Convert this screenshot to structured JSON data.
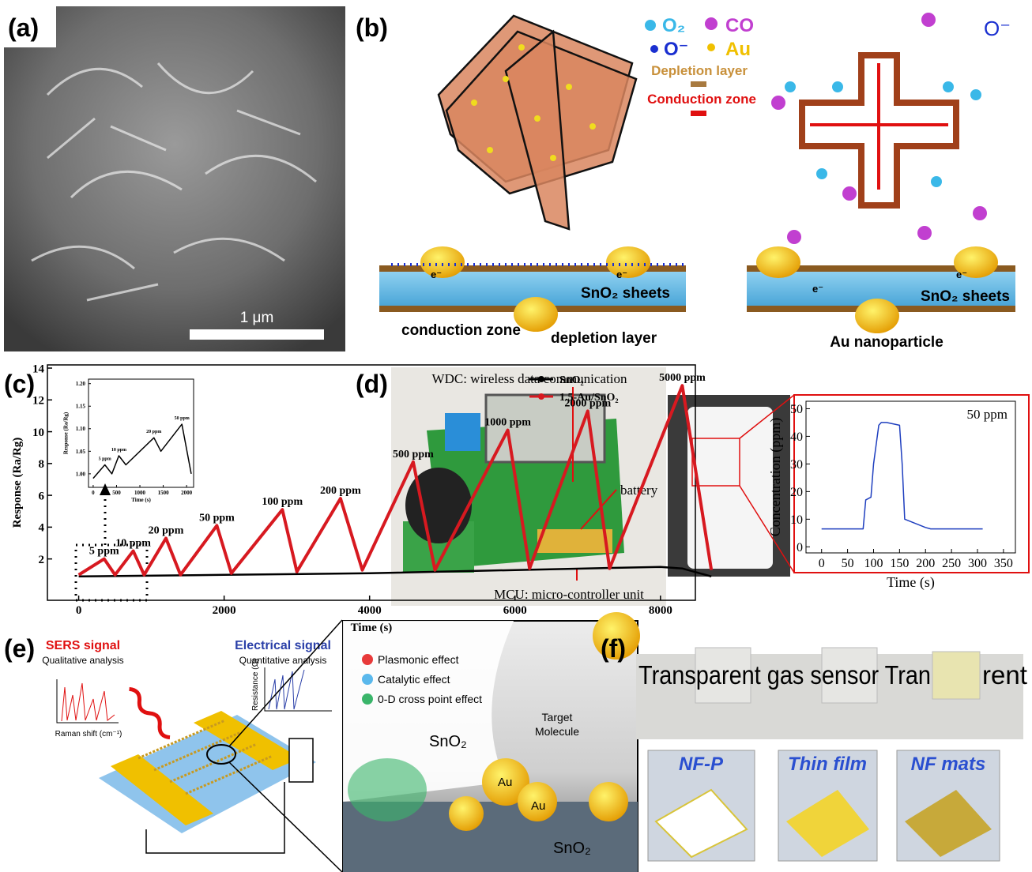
{
  "labels": [
    "(a)",
    "(b)",
    "(c)",
    "(d)",
    "(e)",
    "(f)"
  ],
  "panel_a": {
    "scale_bar": "1 μm"
  },
  "panel_b": {
    "legend": {
      "o2": "O₂",
      "co": "CO",
      "o_minus": "O⁻",
      "au": "Au",
      "depletion": "Depletion layer",
      "conduction": "Conduction zone"
    },
    "corner_label": "O⁻",
    "electron": "e⁻",
    "left": {
      "sheets": "SnO₂ sheets",
      "conduction": "conduction zone",
      "depletion": "depletion layer"
    },
    "right": {
      "sheets": "SnO₂ sheets",
      "particle": "Au nanoparticle"
    }
  },
  "panel_d": {
    "wdc": "WDC: wireless data communication",
    "battery": "battery",
    "mcu": "MCU: micro-controller unit"
  },
  "panel_e": {
    "sers": "SERS signal",
    "qualitative": "Qualitative analysis",
    "electrical": "Electrical signal",
    "quantitative": "Quantitative analysis",
    "raman_axis": "Raman shift (cm⁻¹)",
    "resistance_axis": "Resistance (Ω)",
    "legend": [
      "Plasmonic effect",
      "Catalytic effect",
      "0-D cross point effect"
    ],
    "sno2_top": "SnO₂",
    "target": "Target",
    "molecule": "Molecule",
    "au_1": "Au",
    "au_2": "Au",
    "sno2_bottom": "SnO₂"
  },
  "panel_f": {
    "banner_left": "Transparent gas sensor Tran",
    "banner_right": "rent",
    "tiles": [
      "NF-P",
      "Thin film",
      "NF mats"
    ]
  },
  "chart_data": [
    {
      "type": "line",
      "xlabel": "Time (s)",
      "ylabel": "Response (Ra/Rg)",
      "legend": "upper right",
      "xlim": [
        -430,
        8480
      ],
      "ylim": [
        -0.6,
        14.2
      ],
      "xticks": [
        0,
        2000,
        4000,
        6000,
        8000
      ],
      "yticks": [
        2,
        4,
        6,
        8,
        10,
        12,
        14
      ],
      "series": [
        {
          "name": "SnO₂",
          "color": "#000000",
          "x": [
            0,
            2000,
            4000,
            6000,
            8000,
            8300,
            8700
          ],
          "values": [
            0.9,
            1.0,
            1.1,
            1.3,
            1.5,
            1.4,
            0.9
          ]
        },
        {
          "name": "1.5-Au/SnO₂",
          "color": "#d71920",
          "x": [
            0,
            350,
            500,
            750,
            900,
            1200,
            1400,
            1900,
            2100,
            2800,
            3000,
            3600,
            3900,
            4600,
            4900,
            5900,
            6200,
            7000,
            7300,
            8300,
            8700
          ],
          "values": [
            1.0,
            2.0,
            1.0,
            2.5,
            1.0,
            3.3,
            1.0,
            4.1,
            1.1,
            5.1,
            1.2,
            5.8,
            1.3,
            8.1,
            1.3,
            10.1,
            1.4,
            11.3,
            1.4,
            12.9,
            1.3
          ],
          "peak_labels": [
            "5 ppm",
            "10 ppm",
            "20 ppm",
            "50 ppm",
            "100 ppm",
            "200 ppm",
            "500 ppm",
            "1000 ppm",
            "2000 ppm",
            "5000 ppm"
          ]
        }
      ]
    },
    {
      "type": "line",
      "xlabel": "Time (s)",
      "ylabel": "Response (Ra/Rg)",
      "xlim": [
        -100,
        2150
      ],
      "ylim": [
        0.97,
        1.21
      ],
      "xticks": [
        0,
        500,
        1000,
        1500,
        2000
      ],
      "yticks": [
        {
          "value": 1.0,
          "label": "1.00"
        },
        {
          "value": 1.05,
          "label": "1.05"
        },
        {
          "value": 1.1,
          "label": "1.10"
        },
        {
          "value": 1.15,
          "label": "1.15"
        },
        {
          "value": 1.2,
          "label": "1.20"
        }
      ],
      "series": [
        {
          "color": "#000000",
          "x": [
            0,
            250,
            400,
            550,
            700,
            1300,
            1450,
            1900,
            2100
          ],
          "values": [
            0.99,
            1.02,
            1.0,
            1.04,
            1.02,
            1.08,
            1.05,
            1.11,
            1.0
          ],
          "peak_labels": [
            "5 ppm",
            "10 ppm",
            "20 ppm",
            "50 ppm"
          ]
        }
      ]
    },
    {
      "type": "line",
      "xlabel": "Time (s)",
      "ylabel": "Concentration (ppm)",
      "annotation": "50 ppm",
      "xlim": [
        -30,
        373
      ],
      "ylim": [
        -2.2,
        52.7
      ],
      "xticks": [
        0,
        50,
        100,
        150,
        200,
        250,
        300,
        350
      ],
      "yticks": [
        0,
        10,
        20,
        30,
        40,
        50
      ],
      "series": [
        {
          "color": "#1f3fbf",
          "x": [
            0,
            80,
            85,
            95,
            100,
            110,
            115,
            125,
            150,
            155,
            160,
            200,
            210,
            310
          ],
          "values": [
            6.5,
            6.5,
            17,
            18,
            30,
            44,
            45,
            45,
            44,
            30,
            10,
            7,
            6.5,
            6.5
          ]
        }
      ]
    }
  ]
}
